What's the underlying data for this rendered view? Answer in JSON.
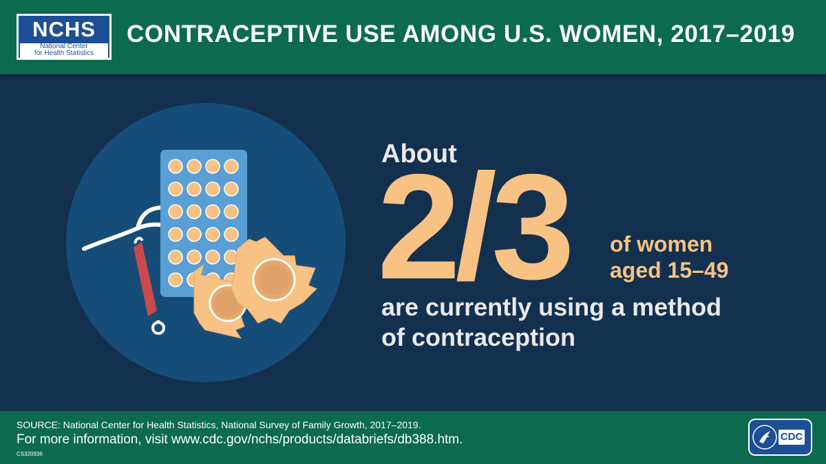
{
  "header": {
    "logo_main": "NCHS",
    "logo_line1": "National Center",
    "logo_line2": "for Health Statistics",
    "title": "CONTRACEPTIVE USE AMONG U.S. WOMEN, 2017–2019"
  },
  "main": {
    "about": "About",
    "fraction": "2/3",
    "of_women_line1": "of women",
    "of_women_line2": "aged 15–49",
    "are_using_line1": "are currently using a method",
    "are_using_line2": "of contraception"
  },
  "illustration": {
    "icons": [
      "pill-pack-icon",
      "iud-icon",
      "condom-icon"
    ],
    "colors": {
      "circle": "#164d78",
      "pack": "#5a9fd4",
      "pill": "#f7c283",
      "iud_stem": "#c94a4a",
      "condom": "#f7c283"
    }
  },
  "footer": {
    "source": "SOURCE: National Center for Health Statistics, National Survey of Family Growth, 2017–2019.",
    "more_info": "For more information, visit www.cdc.gov/nchs/products/databriefs/db388.htm.",
    "code": "CS320936",
    "cdc_logo": "CDC"
  },
  "colors": {
    "background": "#14304f",
    "header_footer": "#0c6b4e",
    "accent": "#f7c283",
    "text": "#e9e9ec"
  }
}
